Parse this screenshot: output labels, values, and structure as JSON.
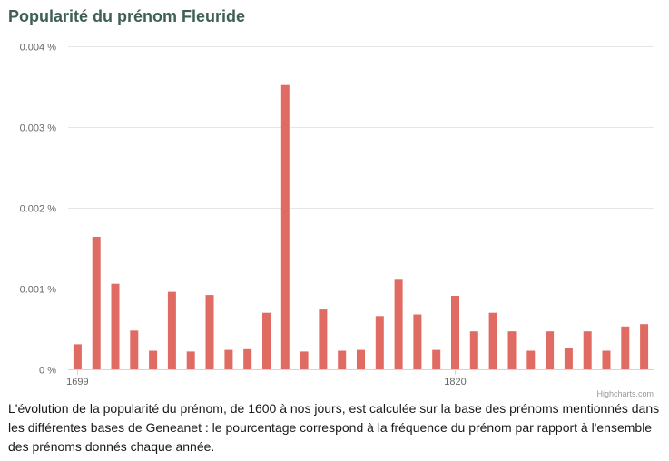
{
  "header": {
    "title": "Popularité du prénom Fleuride"
  },
  "credits": "Highcharts.com",
  "description": "L'évolution de la popularité du prénom, de 1600 à nos jours, est calculée sur la base des prénoms mentionnés dans les différentes bases de Geneanet : le pourcentage correspond à la fréquence du prénom par rapport à l'ensemble des prénoms donnés chaque année.",
  "chart_data": {
    "type": "bar",
    "title": "Popularité du prénom Fleuride",
    "xlabel": "",
    "ylabel": "",
    "y_unit": "%",
    "ylim": [
      0,
      0.004
    ],
    "yticks": [
      0,
      0.001,
      0.002,
      0.003,
      0.004
    ],
    "ytick_labels": [
      "0 %",
      "0.001 %",
      "0.002 %",
      "0.003 %",
      "0.004 %"
    ],
    "xtick_labels": [
      "1699",
      "1820"
    ],
    "grid": true,
    "legend": "none",
    "bar_color": "#e06b63",
    "values": [
      0.00031,
      0.00164,
      0.00106,
      0.00048,
      0.00023,
      0.00096,
      0.00022,
      0.00092,
      0.00024,
      0.00025,
      0.0007,
      0.00352,
      0.00022,
      0.00074,
      0.00023,
      0.00024,
      0.00066,
      0.00112,
      0.00068,
      0.00024,
      0.00091,
      0.00047,
      0.0007,
      0.00047,
      0.00023,
      0.00047,
      0.00026,
      0.00047,
      0.00023,
      0.00053,
      0.00056
    ]
  }
}
